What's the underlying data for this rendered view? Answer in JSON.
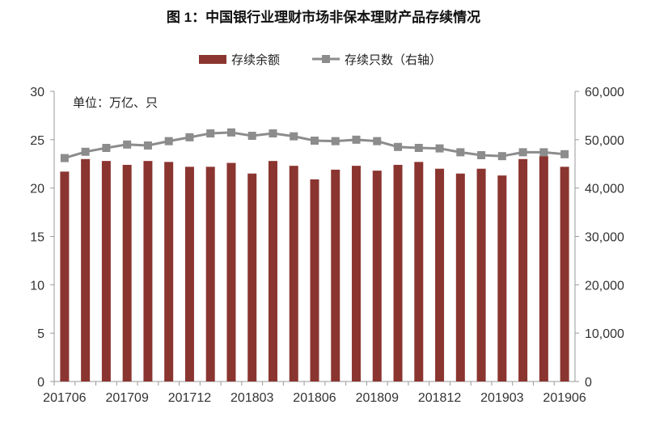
{
  "chart_data": {
    "type": "bar+line",
    "title": "图 1：中国银行业理财市场非保本理财产品存续情况",
    "unit_note": "单位：万亿、只",
    "categories": [
      "201706",
      "201707",
      "201708",
      "201709",
      "201710",
      "201711",
      "201712",
      "201801",
      "201802",
      "201803",
      "201804",
      "201805",
      "201806",
      "201807",
      "201808",
      "201809",
      "201810",
      "201811",
      "201812",
      "201901",
      "201902",
      "201903",
      "201904",
      "201905",
      "201906"
    ],
    "x_tick_labels": [
      "201706",
      "201709",
      "201712",
      "201803",
      "201806",
      "201809",
      "201812",
      "201903",
      "201906"
    ],
    "series": [
      {
        "name": "存续余额",
        "type": "bar",
        "axis": "left",
        "color": "#8B3530",
        "values": [
          21.7,
          23.0,
          22.8,
          22.4,
          22.8,
          22.7,
          22.2,
          22.2,
          22.6,
          21.5,
          22.8,
          22.3,
          20.9,
          21.9,
          22.3,
          21.8,
          22.4,
          22.7,
          22.0,
          21.5,
          22.0,
          21.3,
          23.0,
          23.3,
          22.2
        ]
      },
      {
        "name": "存续只数（右轴）",
        "type": "line",
        "axis": "right",
        "color": "#8C8C8C",
        "values": [
          46200,
          47500,
          48300,
          49000,
          48800,
          49700,
          50500,
          51300,
          51500,
          50800,
          51300,
          50700,
          49800,
          49700,
          50000,
          49700,
          48500,
          48300,
          48200,
          47400,
          46800,
          46600,
          47400,
          47400,
          47000
        ]
      }
    ],
    "left_axis": {
      "ylim": [
        0,
        30
      ],
      "ticks": [
        "0",
        "5",
        "10",
        "15",
        "20",
        "25",
        "30"
      ]
    },
    "right_axis": {
      "ylim": [
        0,
        60000
      ],
      "ticks": [
        "0",
        "10,000",
        "20,000",
        "30,000",
        "40,000",
        "50,000",
        "60,000"
      ]
    },
    "legend_position": "top",
    "grid": false
  }
}
